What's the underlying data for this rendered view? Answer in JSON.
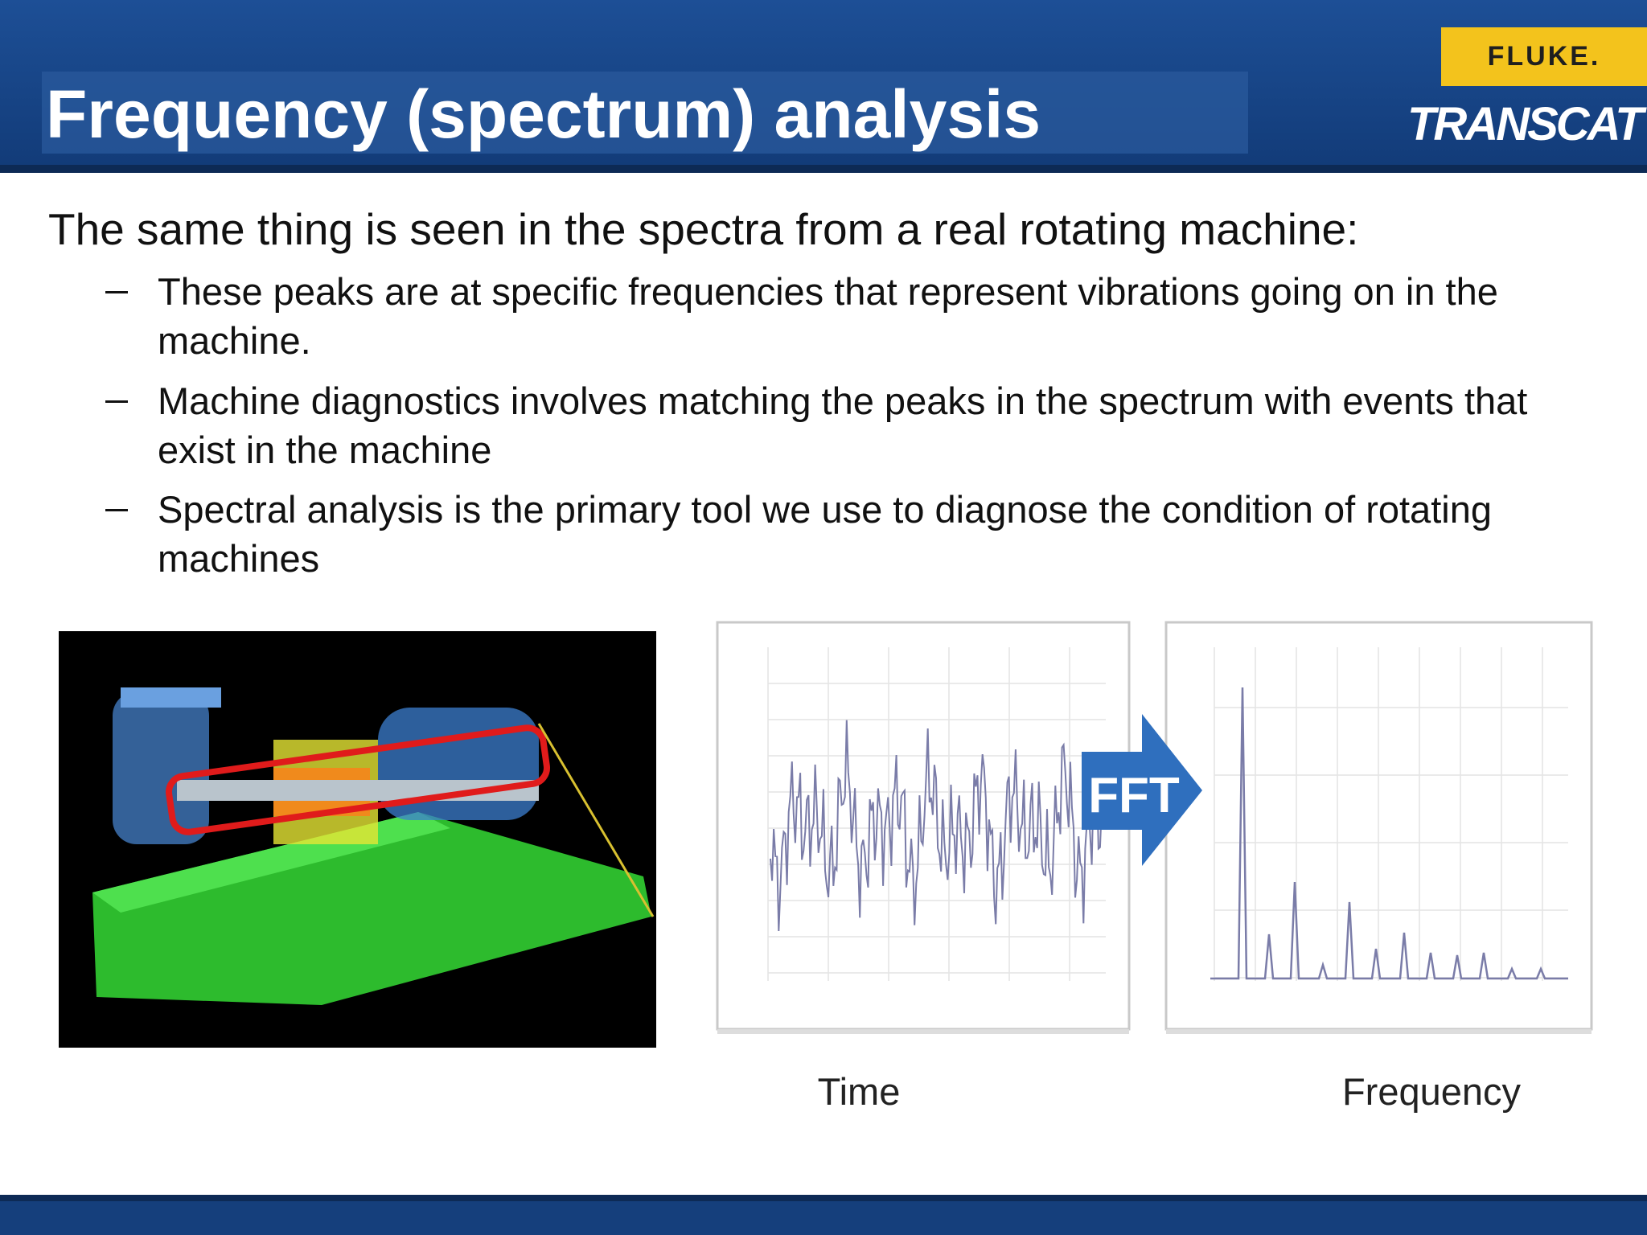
{
  "header": {
    "title": "Frequency (spectrum) analysis",
    "logos": {
      "fluke": "FLUKE.",
      "transcat": "TRANSCAT"
    }
  },
  "body": {
    "intro": "The same thing is seen in the spectra from a real rotating machine:",
    "bullets": [
      "These peaks are at specific frequencies that represent vibrations going on in the machine.",
      "Machine diagnostics involves matching the peaks in the spectrum with events that exist in the machine",
      "Spectral analysis is the primary tool we use to diagnose the condition of rotating machines"
    ]
  },
  "figure": {
    "arrow_label": "FFT",
    "time_label": "Time",
    "frequency_label": "Frequency"
  }
}
